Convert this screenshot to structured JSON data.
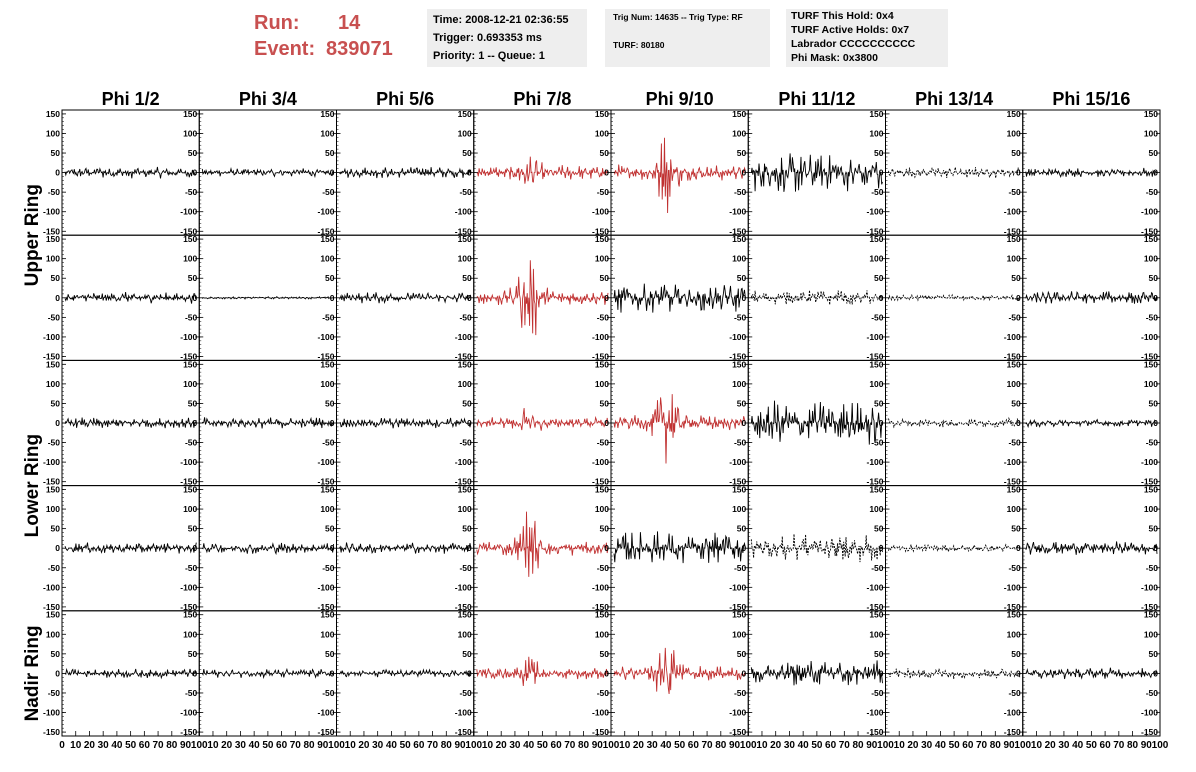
{
  "run_info": {
    "run_label": "Run:",
    "run_value": "14",
    "event_label": "Event:",
    "event_value": "839071",
    "color": "#c85050"
  },
  "info_box_1": {
    "time": "Time: 2008-12-21 02:36:55",
    "trigger": "Trigger: 0.693353 ms",
    "priority": "Priority: 1 -- Queue: 1"
  },
  "info_box_2": {
    "trig": "Trig Num: 14635 -- Trig Type: RF",
    "turf": "TURF: 80180"
  },
  "info_box_3": {
    "hold": "TURF This Hold: 0x4",
    "active": "TURF Active Holds: 0x7",
    "labrador": "Labrador CCCCCCCCCC",
    "mask": "Phi Mask: 0x3800"
  },
  "grid": {
    "phi_labels": [
      "Phi 1/2",
      "Phi 3/4",
      "Phi 5/6",
      "Phi 7/8",
      "Phi 9/10",
      "Phi 11/12",
      "Phi 13/14",
      "Phi 15/16"
    ],
    "ring_labels": [
      "Upper Ring",
      "Lower Ring",
      "Nadir Ring"
    ],
    "y_ticks": [
      "150",
      "100",
      "50",
      "0",
      "-50",
      "-100",
      "-150"
    ],
    "x_ticks": [
      "0",
      "10",
      "20",
      "30",
      "40",
      "50",
      "60",
      "70",
      "80",
      "90",
      "100"
    ],
    "ylim": [
      -160,
      160
    ],
    "xlim": [
      0,
      100
    ],
    "colors": {
      "normal": "#000000",
      "triggered": "#c03030"
    },
    "panels": [
      [
        {
          "a": 15,
          "b": 0
        },
        {
          "a": 12,
          "b": 0
        },
        {
          "a": 15,
          "b": 0
        },
        {
          "a": 20,
          "b": 50,
          "c": "r"
        },
        {
          "a": 22,
          "b": 100,
          "c": "r"
        },
        {
          "a": 55,
          "b": 0
        },
        {
          "a": 15,
          "b": 0,
          "d": 1
        },
        {
          "a": 12,
          "b": 0
        }
      ],
      [
        {
          "a": 15,
          "b": 0
        },
        {
          "a": 3,
          "b": 0
        },
        {
          "a": 15,
          "b": 0
        },
        {
          "a": 22,
          "b": 120,
          "c": "r"
        },
        {
          "a": 40,
          "b": 0
        },
        {
          "a": 20,
          "b": 0,
          "d": 1
        },
        {
          "a": 8,
          "b": 0,
          "d": 1
        },
        {
          "a": 18,
          "b": 0
        }
      ],
      [
        {
          "a": 15,
          "b": 0
        },
        {
          "a": 15,
          "b": 0
        },
        {
          "a": 15,
          "b": 0
        },
        {
          "a": 15,
          "b": 40,
          "c": "r"
        },
        {
          "a": 20,
          "b": 120,
          "c": "r"
        },
        {
          "a": 60,
          "b": 0
        },
        {
          "a": 12,
          "b": 0,
          "d": 1
        },
        {
          "a": 10,
          "b": 0
        }
      ],
      [
        {
          "a": 15,
          "b": 0
        },
        {
          "a": 15,
          "b": 0
        },
        {
          "a": 15,
          "b": 0
        },
        {
          "a": 20,
          "b": 90,
          "c": "r"
        },
        {
          "a": 45,
          "b": 0
        },
        {
          "a": 40,
          "b": 0,
          "d": 1
        },
        {
          "a": 10,
          "b": 0,
          "d": 1
        },
        {
          "a": 18,
          "b": 0
        }
      ],
      [
        {
          "a": 12,
          "b": 0
        },
        {
          "a": 12,
          "b": 0
        },
        {
          "a": 10,
          "b": 0
        },
        {
          "a": 15,
          "b": 30,
          "c": "r"
        },
        {
          "a": 20,
          "b": 90,
          "c": "r"
        },
        {
          "a": 35,
          "b": 0
        },
        {
          "a": 15,
          "b": 0,
          "d": 1
        },
        {
          "a": 15,
          "b": 0
        }
      ]
    ]
  }
}
